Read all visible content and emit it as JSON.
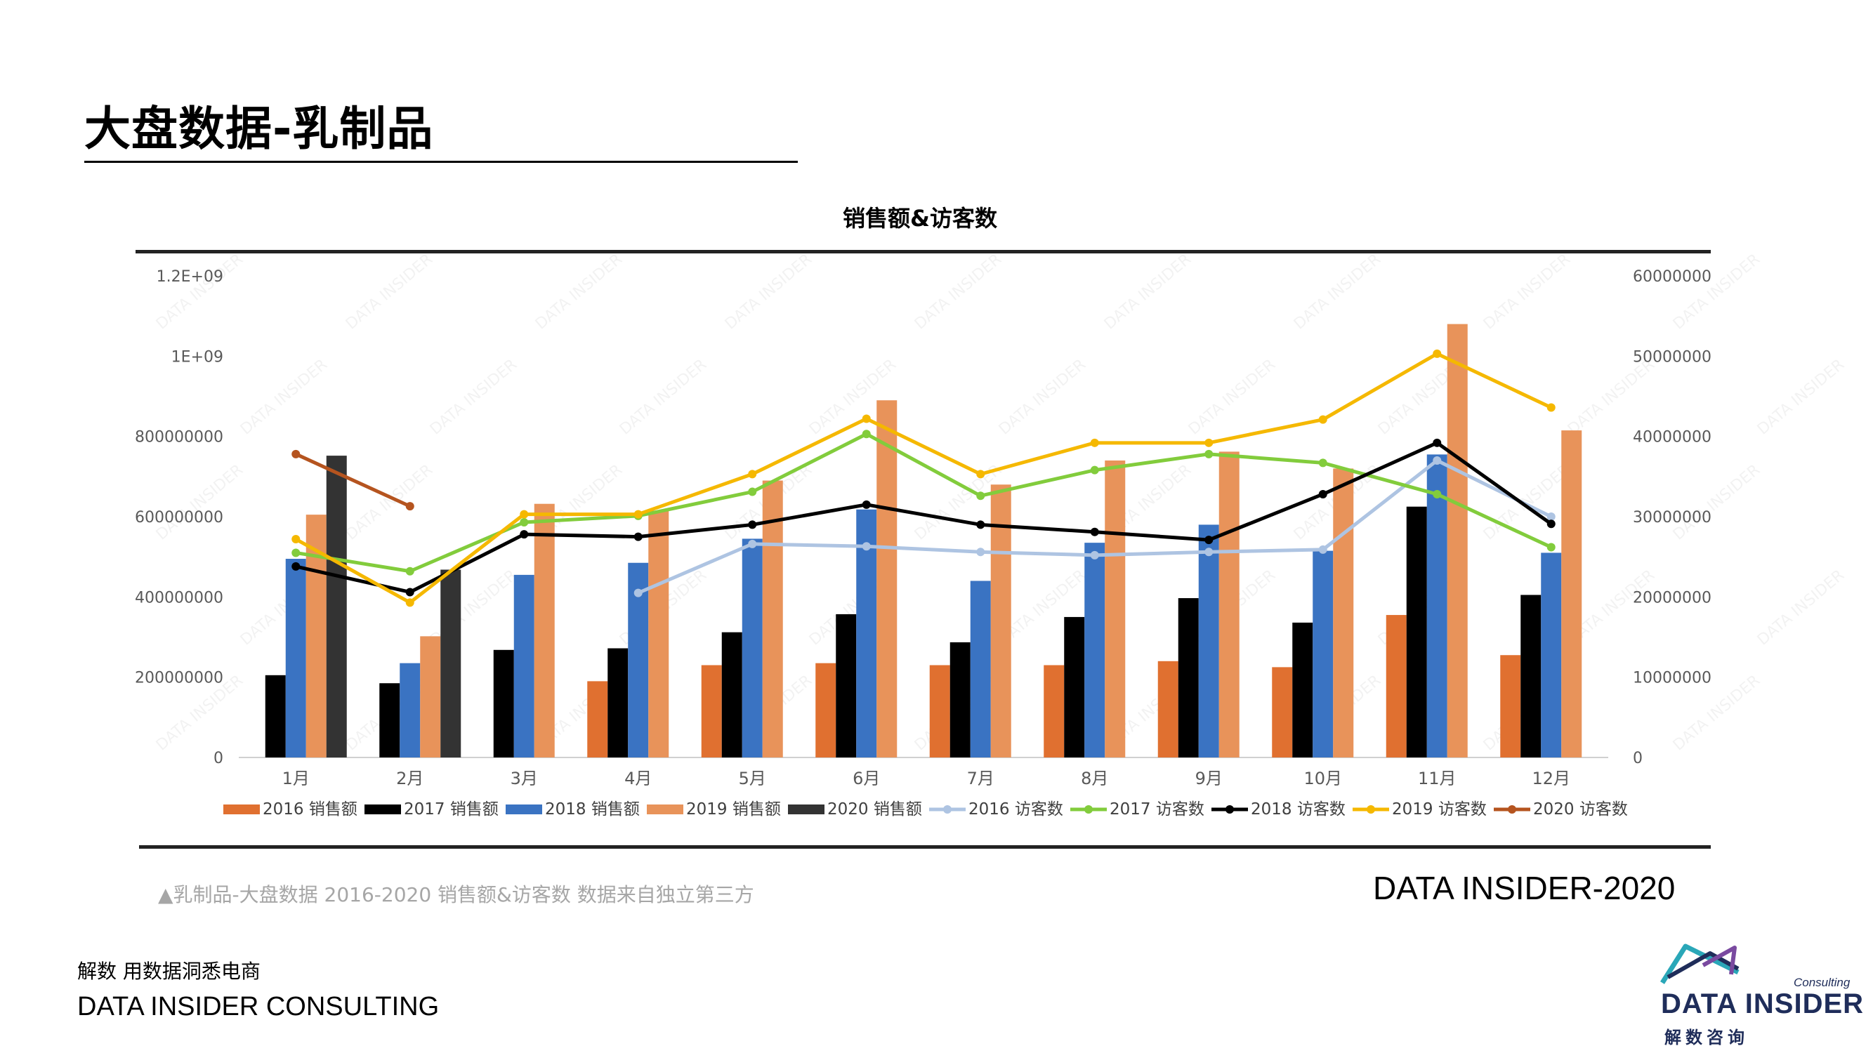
{
  "page": {
    "title": "大盘数据-乳制品",
    "caption": "▲乳制品-大盘数据 2016-2020 销售额&访客数 数据来自独立第三方",
    "brand_year": "DATA INSIDER-2020",
    "tagline": "解数 用数据洞悉电商",
    "company": "DATA INSIDER CONSULTING"
  },
  "logo": {
    "consulting": "Consulting",
    "main": "DATA INSIDER",
    "sub": "解数咨询",
    "colors": {
      "teal": "#2aa7b8",
      "navy": "#1f2d5a",
      "purple": "#7a4aa0"
    }
  },
  "chart_data": {
    "type": "bar",
    "title": "销售额&访客数",
    "categories": [
      "1月",
      "2月",
      "3月",
      "4月",
      "5月",
      "6月",
      "7月",
      "8月",
      "9月",
      "10月",
      "11月",
      "12月"
    ],
    "y_left": {
      "min": 0,
      "max": 1200000000,
      "ticks": [
        0,
        200000000,
        400000000,
        600000000,
        800000000,
        1000000000,
        1200000000
      ],
      "tick_labels": [
        "0",
        "200000000",
        "400000000",
        "600000000",
        "800000000",
        "1E+09",
        "1.2E+09"
      ]
    },
    "y_right": {
      "min": 0,
      "max": 60000000,
      "ticks": [
        0,
        10000000,
        20000000,
        30000000,
        40000000,
        50000000,
        60000000
      ],
      "tick_labels": [
        "0",
        "10000000",
        "20000000",
        "30000000",
        "40000000",
        "50000000",
        "60000000"
      ]
    },
    "legend_position": "bottom",
    "bar_series": [
      {
        "name": "2016 销售额",
        "color": "#e07030",
        "values": [
          null,
          null,
          null,
          190000000,
          230000000,
          235000000,
          230000000,
          230000000,
          240000000,
          225000000,
          355000000,
          255000000
        ]
      },
      {
        "name": "2017 销售额",
        "color": "#000000",
        "values": [
          205000000,
          185000000,
          268000000,
          272000000,
          312000000,
          357000000,
          287000000,
          350000000,
          397000000,
          336000000,
          625000000,
          405000000
        ]
      },
      {
        "name": "2018 销售额",
        "color": "#3a73c2",
        "values": [
          495000000,
          235000000,
          455000000,
          485000000,
          545000000,
          618000000,
          440000000,
          535000000,
          580000000,
          515000000,
          755000000,
          510000000
        ]
      },
      {
        "name": "2019 销售额",
        "color": "#e8935a",
        "values": [
          605000000,
          302000000,
          632000000,
          615000000,
          690000000,
          890000000,
          680000000,
          740000000,
          762000000,
          720000000,
          1080000000,
          815000000
        ]
      },
      {
        "name": "2020 销售额",
        "color": "#333333",
        "values": [
          752000000,
          468000000,
          null,
          null,
          null,
          null,
          null,
          null,
          null,
          null,
          null,
          null
        ]
      }
    ],
    "line_series": [
      {
        "name": "2016 访客数",
        "color": "#aec4e2",
        "axis": "right",
        "values": [
          null,
          null,
          null,
          20500000,
          26600000,
          26300000,
          25600000,
          25200000,
          25600000,
          25900000,
          37000000,
          30000000
        ]
      },
      {
        "name": "2017 访客数",
        "color": "#82cc3c",
        "axis": "right",
        "values": [
          25500000,
          23200000,
          29300000,
          30100000,
          33100000,
          40300000,
          32600000,
          35800000,
          37800000,
          36700000,
          32800000,
          26200000
        ]
      },
      {
        "name": "2018 访客数",
        "color": "#000000",
        "axis": "right",
        "values": [
          23800000,
          20600000,
          27800000,
          27500000,
          29000000,
          31500000,
          29000000,
          28100000,
          27100000,
          32800000,
          39200000,
          29100000
        ]
      },
      {
        "name": "2019 访客数",
        "color": "#f5b800",
        "axis": "right",
        "values": [
          27200000,
          19300000,
          30300000,
          30300000,
          35300000,
          42200000,
          35300000,
          39200000,
          39200000,
          42100000,
          50300000,
          43600000
        ]
      },
      {
        "name": "2020 访客数",
        "color": "#b5541f",
        "axis": "right",
        "values": [
          37800000,
          31300000,
          null,
          null,
          null,
          null,
          null,
          null,
          null,
          null,
          null,
          null
        ]
      }
    ]
  }
}
